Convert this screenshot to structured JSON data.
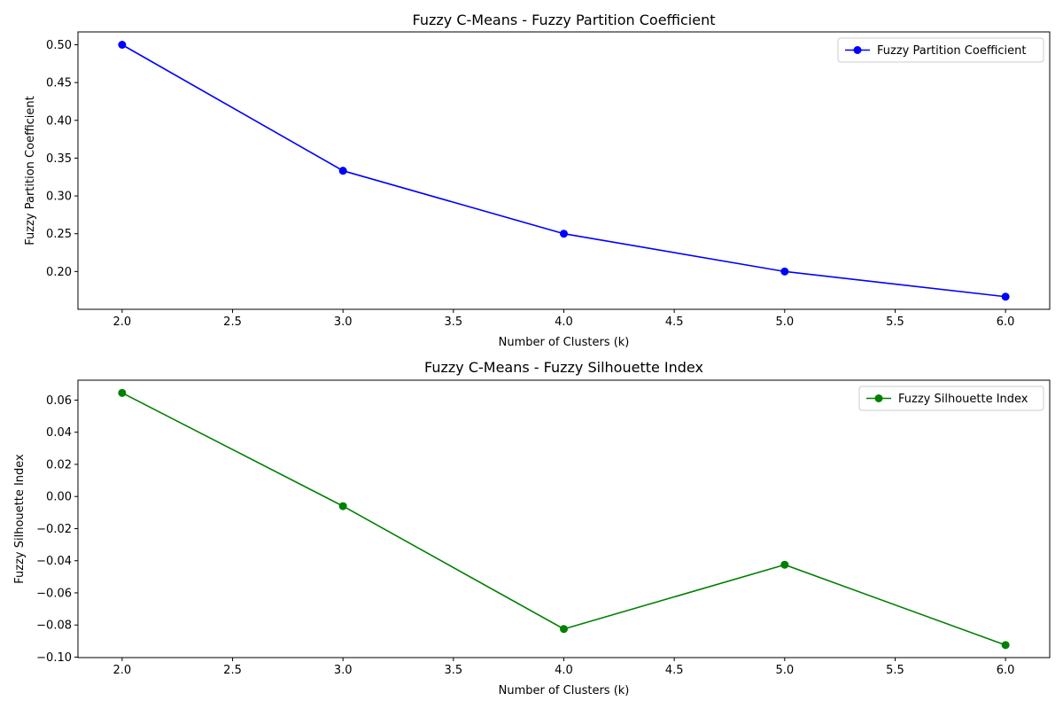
{
  "chart_data": [
    {
      "type": "line",
      "title": "Fuzzy C-Means - Fuzzy Partition Coefficient",
      "xlabel": "Number of Clusters (k)",
      "ylabel": "Fuzzy Partition Coefficient",
      "x": [
        2,
        3,
        4,
        5,
        6
      ],
      "series": [
        {
          "name": "Fuzzy Partition Coefficient",
          "values": [
            0.5,
            0.3333,
            0.25,
            0.2,
            0.1667
          ],
          "color": "#0000ff"
        }
      ],
      "xlim": [
        1.8,
        6.2
      ],
      "ylim": [
        0.15,
        0.517
      ],
      "xticks": [
        2.0,
        2.5,
        3.0,
        3.5,
        4.0,
        4.5,
        5.0,
        5.5,
        6.0
      ],
      "xtick_labels": [
        "2.0",
        "2.5",
        "3.0",
        "3.5",
        "4.0",
        "4.5",
        "5.0",
        "5.5",
        "6.0"
      ],
      "yticks": [
        0.2,
        0.25,
        0.3,
        0.35,
        0.4,
        0.45,
        0.5
      ],
      "ytick_labels": [
        "0.20",
        "0.25",
        "0.30",
        "0.35",
        "0.40",
        "0.45",
        "0.50"
      ],
      "legend_position": "top-right",
      "grid": false
    },
    {
      "type": "line",
      "title": "Fuzzy C-Means - Fuzzy Silhouette Index",
      "xlabel": "Number of Clusters (k)",
      "ylabel": "Fuzzy Silhouette Index",
      "x": [
        2,
        3,
        4,
        5,
        6
      ],
      "series": [
        {
          "name": "Fuzzy Silhouette Index",
          "values": [
            0.0645,
            -0.006,
            -0.0825,
            -0.0425,
            -0.0925
          ],
          "color": "#008000"
        }
      ],
      "xlim": [
        1.8,
        6.2
      ],
      "ylim": [
        -0.1003,
        0.0724
      ],
      "xticks": [
        2.0,
        2.5,
        3.0,
        3.5,
        4.0,
        4.5,
        5.0,
        5.5,
        6.0
      ],
      "xtick_labels": [
        "2.0",
        "2.5",
        "3.0",
        "3.5",
        "4.0",
        "4.5",
        "5.0",
        "5.5",
        "6.0"
      ],
      "yticks": [
        -0.1,
        -0.08,
        -0.06,
        -0.04,
        -0.02,
        0.0,
        0.02,
        0.04,
        0.06
      ],
      "ytick_labels": [
        "−0.10",
        "−0.08",
        "−0.06",
        "−0.04",
        "−0.02",
        "0.00",
        "0.02",
        "0.04",
        "0.06"
      ],
      "legend_position": "top-right",
      "grid": false
    }
  ]
}
